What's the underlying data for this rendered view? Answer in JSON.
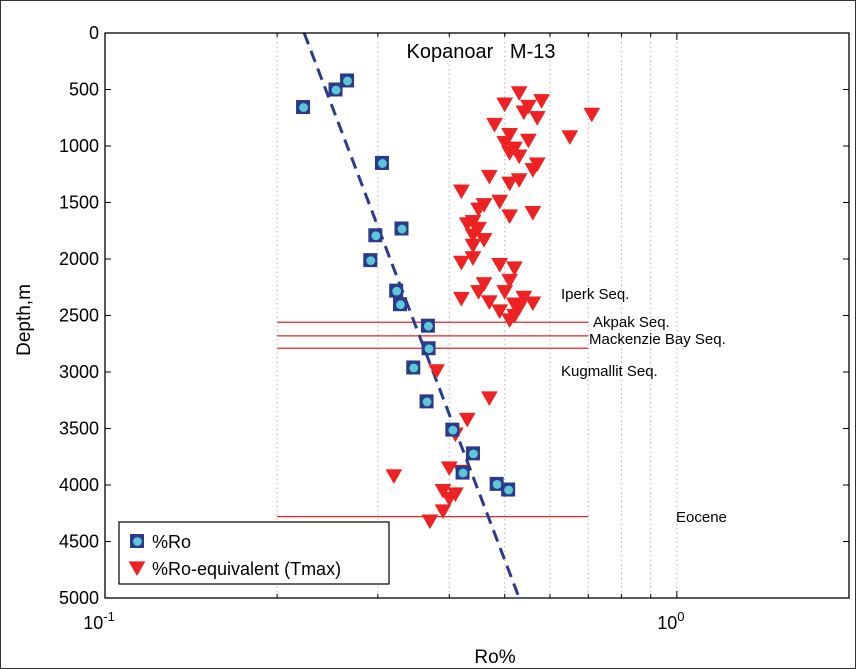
{
  "chart_data": {
    "type": "scatter",
    "title": "Kopanoar   M-13",
    "xlabel": "Ro%",
    "ylabel": "Depth,m",
    "xscale": "log",
    "xlim": [
      0.1,
      2.0
    ],
    "ylim": [
      0,
      5000
    ],
    "y_inverted": true,
    "grid": "vertical dotted",
    "x_ticks": [
      {
        "value": 0.1,
        "base": "10",
        "exp": "-1"
      },
      {
        "value": 1.0,
        "base": "10",
        "exp": "0"
      }
    ],
    "y_ticks": [
      "0",
      "500",
      "1000",
      "1500",
      "2000",
      "2500",
      "3000",
      "3500",
      "4000",
      "4500",
      "5000"
    ],
    "series": [
      {
        "name": "%Ro",
        "marker": "square-with-circle",
        "color": "#2b3a8a",
        "inner_color": "#5bc8d6",
        "points": [
          [
            0.265,
            420
          ],
          [
            0.253,
            500
          ],
          [
            0.222,
            655
          ],
          [
            0.305,
            1150
          ],
          [
            0.33,
            1730
          ],
          [
            0.297,
            1790
          ],
          [
            0.291,
            2010
          ],
          [
            0.323,
            2280
          ],
          [
            0.328,
            2400
          ],
          [
            0.367,
            2590
          ],
          [
            0.368,
            2790
          ],
          [
            0.346,
            2960
          ],
          [
            0.365,
            3260
          ],
          [
            0.405,
            3510
          ],
          [
            0.44,
            3720
          ],
          [
            0.422,
            3890
          ],
          [
            0.484,
            3990
          ],
          [
            0.507,
            4040
          ]
        ]
      },
      {
        "name": "%Ro-equivalent (Tmax)",
        "marker": "triangle-down",
        "color": "#ee2222",
        "points": [
          [
            0.53,
            530
          ],
          [
            0.58,
            600
          ],
          [
            0.5,
            630
          ],
          [
            0.55,
            650
          ],
          [
            0.54,
            700
          ],
          [
            0.57,
            750
          ],
          [
            0.71,
            720
          ],
          [
            0.48,
            810
          ],
          [
            0.51,
            900
          ],
          [
            0.65,
            920
          ],
          [
            0.55,
            950
          ],
          [
            0.5,
            970
          ],
          [
            0.52,
            1020
          ],
          [
            0.51,
            1060
          ],
          [
            0.53,
            1090
          ],
          [
            0.57,
            1160
          ],
          [
            0.56,
            1210
          ],
          [
            0.47,
            1270
          ],
          [
            0.53,
            1300
          ],
          [
            0.51,
            1330
          ],
          [
            0.42,
            1400
          ],
          [
            0.49,
            1490
          ],
          [
            0.46,
            1520
          ],
          [
            0.45,
            1560
          ],
          [
            0.56,
            1590
          ],
          [
            0.51,
            1620
          ],
          [
            0.44,
            1670
          ],
          [
            0.43,
            1690
          ],
          [
            0.45,
            1730
          ],
          [
            0.44,
            1790
          ],
          [
            0.46,
            1830
          ],
          [
            0.44,
            1880
          ],
          [
            0.44,
            1990
          ],
          [
            0.42,
            2030
          ],
          [
            0.49,
            2050
          ],
          [
            0.52,
            2080
          ],
          [
            0.51,
            2190
          ],
          [
            0.46,
            2220
          ],
          [
            0.45,
            2290
          ],
          [
            0.5,
            2290
          ],
          [
            0.54,
            2340
          ],
          [
            0.42,
            2350
          ],
          [
            0.47,
            2380
          ],
          [
            0.52,
            2400
          ],
          [
            0.56,
            2390
          ],
          [
            0.53,
            2430
          ],
          [
            0.49,
            2460
          ],
          [
            0.52,
            2500
          ],
          [
            0.51,
            2540
          ],
          [
            0.38,
            2990
          ],
          [
            0.47,
            3230
          ],
          [
            0.43,
            3420
          ],
          [
            0.41,
            3550
          ],
          [
            0.4,
            3850
          ],
          [
            0.42,
            3880
          ],
          [
            0.32,
            3920
          ],
          [
            0.39,
            4050
          ],
          [
            0.41,
            4080
          ],
          [
            0.4,
            4120
          ],
          [
            0.39,
            4230
          ],
          [
            0.37,
            4320
          ]
        ]
      }
    ],
    "trend_line": {
      "style": "dashed",
      "color": "#2b3a8a",
      "from": [
        0.223,
        0
      ],
      "to": [
        0.53,
        5000
      ]
    },
    "boundaries": [
      {
        "label": "Iperk Seq.",
        "depth": null
      },
      {
        "label": "Akpak Seq.",
        "depth": 2560
      },
      {
        "label": "Mackenzie Bay Seq.",
        "depth": 2680
      },
      {
        "label": "Kugmallit Seq.",
        "depth": 2790
      },
      {
        "label": "Eocene",
        "depth": 4280
      }
    ],
    "boundary_xrange": [
      0.2,
      0.7
    ],
    "boundary_color": "#ee2222",
    "legend_position": "bottom-left"
  }
}
